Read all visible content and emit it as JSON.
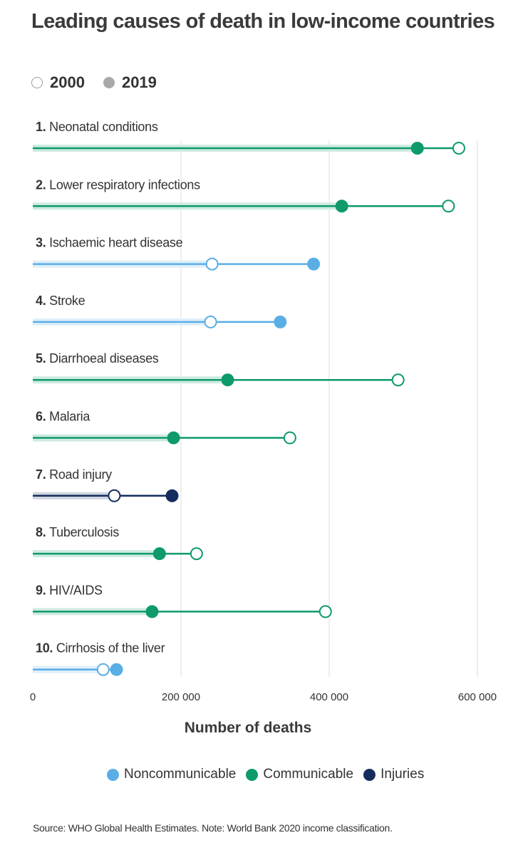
{
  "title": "Leading causes of death in low-income countries",
  "year_legend": {
    "open_label": "2000",
    "filled_label": "2019"
  },
  "chart_data": {
    "type": "dumbbell",
    "title": "Leading causes of death in low-income countries",
    "xlabel": "Number of deaths",
    "xlim": [
      0,
      600000
    ],
    "xticks": [
      0,
      200000,
      400000,
      600000
    ],
    "xtick_labels": [
      "0",
      "200 000",
      "400 000",
      "600 000"
    ],
    "grid": true,
    "categories_colors": {
      "Noncommunicable": "#5aaee6",
      "Communicable": "#0e9a6a",
      "Injuries": "#152d5e"
    },
    "rows": [
      {
        "label": "1. Neonatal conditions",
        "category": "Communicable",
        "y2000": 575000,
        "y2019": 519000
      },
      {
        "label": "2. Lower respiratory infections",
        "category": "Communicable",
        "y2000": 561000,
        "y2019": 417000
      },
      {
        "label": "3. Ischaemic heart disease",
        "category": "Noncommunicable",
        "y2000": 242000,
        "y2019": 379000
      },
      {
        "label": "4. Stroke",
        "category": "Noncommunicable",
        "y2000": 240000,
        "y2019": 334000
      },
      {
        "label": "5. Diarrhoeal diseases",
        "category": "Communicable",
        "y2000": 493000,
        "y2019": 263000
      },
      {
        "label": "6. Malaria",
        "category": "Communicable",
        "y2000": 347000,
        "y2019": 190000
      },
      {
        "label": "7. Road injury",
        "category": "Injuries",
        "y2000": 110000,
        "y2019": 188000
      },
      {
        "label": "8. Tuberculosis",
        "category": "Communicable",
        "y2000": 221000,
        "y2019": 171000
      },
      {
        "label": "9. HIV/AIDS",
        "category": "Communicable",
        "y2000": 395000,
        "y2019": 161000
      },
      {
        "label": "10. Cirrhosis of the liver",
        "category": "Noncommunicable",
        "y2000": 95000,
        "y2019": 113000
      }
    ]
  },
  "category_legend": [
    {
      "label": "Noncommunicable",
      "color": "#5aaee6"
    },
    {
      "label": "Communicable",
      "color": "#0e9a6a"
    },
    {
      "label": "Injuries",
      "color": "#152d5e"
    }
  ],
  "source": "Source: WHO Global Health Estimates. Note: World Bank 2020 income classification."
}
